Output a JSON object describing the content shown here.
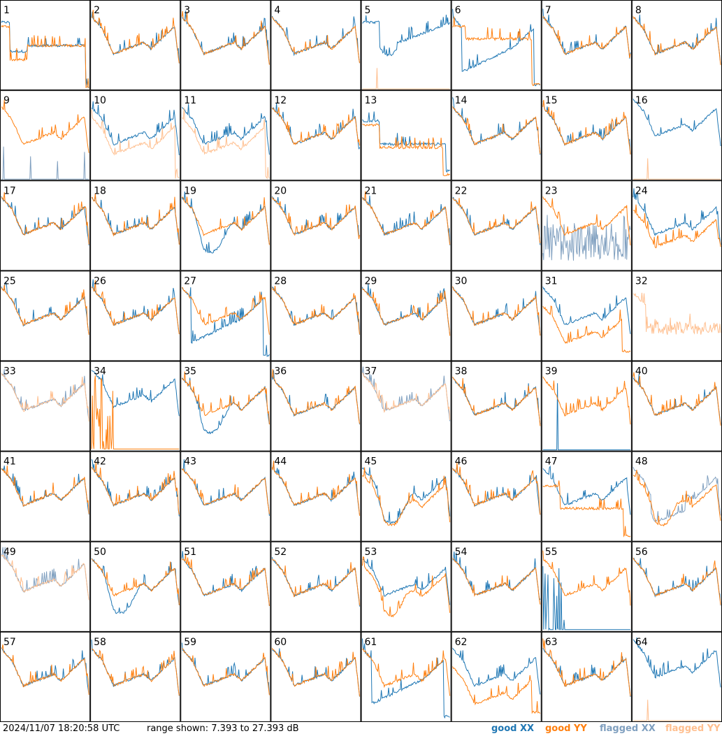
{
  "chart_data": {
    "type": "line",
    "grid": {
      "rows": 8,
      "cols": 8
    },
    "panel_labels": [
      "1",
      "2",
      "3",
      "4",
      "5",
      "6",
      "7",
      "8",
      "9",
      "10",
      "11",
      "12",
      "13",
      "14",
      "15",
      "16",
      "17",
      "18",
      "19",
      "20",
      "21",
      "22",
      "23",
      "24",
      "25",
      "26",
      "27",
      "28",
      "29",
      "30",
      "31",
      "32",
      "33",
      "34",
      "35",
      "36",
      "37",
      "38",
      "39",
      "40",
      "41",
      "42",
      "43",
      "44",
      "45",
      "46",
      "47",
      "48",
      "49",
      "50",
      "51",
      "52",
      "53",
      "54",
      "55",
      "56",
      "57",
      "58",
      "59",
      "60",
      "61",
      "62",
      "63",
      "64"
    ],
    "ylim_db": [
      7.393,
      27.393
    ],
    "range_text": "range shown: 7.393 to 27.393 dB",
    "timestamp": "2024/11/07 18:20:58 UTC",
    "legend": [
      {
        "key": "good_xx",
        "prefix": "good",
        "pol": "XX",
        "color": "#1f77b4"
      },
      {
        "key": "good_yy",
        "prefix": "good",
        "pol": "YY",
        "color": "#ff7f0e"
      },
      {
        "key": "flagged_xx",
        "prefix": "flagged",
        "pol": "XX",
        "color": "#7f9fbf"
      },
      {
        "key": "flagged_yy",
        "prefix": "flagged",
        "pol": "YY",
        "color": "#ffbf8f"
      }
    ],
    "panels": {
      "1": {
        "xx": "odd1",
        "yy": "odd1y"
      },
      "5": {
        "xx": "odd5",
        "yy": "spikeflag"
      },
      "6": {
        "xx": "dipdeep",
        "yy": "flatfall"
      },
      "9": {
        "xx": "flagspikes",
        "yy": "normal"
      },
      "10": {
        "xx": "normal",
        "yy": "flaggedlow"
      },
      "11": {
        "xx": "normal",
        "yy": "flaggedlow"
      },
      "13": {
        "xx": "lowfall",
        "yy": "lowfall2"
      },
      "16": {
        "xx": "xxonly",
        "yy": "spikeflag"
      },
      "19": {
        "xx": "dip",
        "yy": "normal"
      },
      "23": {
        "xx": "noisyflag",
        "yy": "normal"
      },
      "24": {
        "xx": "normal",
        "yy": "lower"
      },
      "27": {
        "xx": "dipdeep",
        "yy": "normal"
      },
      "31": {
        "xx": "normal",
        "yy": "lower2"
      },
      "32": {
        "xx": "none",
        "yy": "flaggednoisy"
      },
      "33": {
        "xx": "flaggedsimilar",
        "yy": "flaggedsimilar"
      },
      "34": {
        "xx": "xxonly",
        "yy": "bottomspikes"
      },
      "35": {
        "xx": "dip",
        "yy": "normal"
      },
      "37": {
        "xx": "flaggedsimilar",
        "yy": "flaggedsimilar"
      },
      "39": {
        "xx": "spikebottom",
        "yy": "normal"
      },
      "45": {
        "xx": "dip",
        "yy": "dip2"
      },
      "47": {
        "xx": "normal",
        "yy": "lowfall2"
      },
      "48": {
        "xx": "flaggeddip",
        "yy": "dip2"
      },
      "49": {
        "xx": "flaggedsimilar",
        "yy": "flaggedsimilar"
      },
      "50": {
        "xx": "dip",
        "yy": "normal"
      },
      "53": {
        "xx": "normal",
        "yy": "dip2"
      },
      "55": {
        "xx": "bottomspikes",
        "yy": "normal"
      },
      "61": {
        "xx": "dipdeep",
        "yy": "normal"
      },
      "62": {
        "xx": "normal",
        "yy": "lower2"
      },
      "64": {
        "xx": "xxonly",
        "yy": "spikeflag"
      }
    }
  }
}
